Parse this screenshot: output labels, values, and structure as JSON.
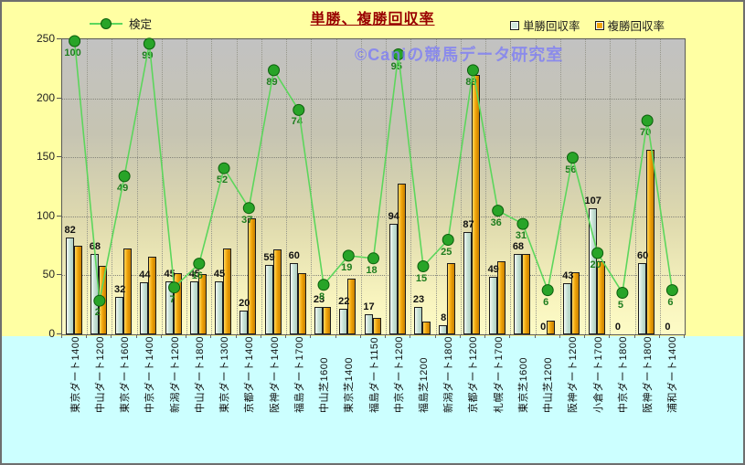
{
  "title": "単勝、複勝回収率",
  "watermark": "©Caniの競馬データ研究室",
  "legend": {
    "kentei": "検定",
    "tansho": "単勝回収率",
    "fukusho": "複勝回収率"
  },
  "colors": {
    "title": "#990000",
    "watermark": "#7D7DF5",
    "outer_bg": "#FFFFA3",
    "bottom_bg": "#CCFFFF",
    "plot_gradient_top": "#C2C2C2",
    "plot_gradient_bottom": "#FDFBC6",
    "tansho_bar": "#CBE4D9",
    "fukusho_bar": "#F2A60A",
    "kentei_line": "#5CD65C",
    "kentei_dot": "#28A428",
    "kentei_label": "#1E7D1E"
  },
  "chart_data": {
    "type": "bar",
    "subtype": "combo bar+line",
    "title": "単勝、複勝回収率",
    "y_axis": {
      "min": 0,
      "max": 250,
      "ticks": [
        0,
        50,
        100,
        150,
        200,
        250
      ],
      "gridlines": [
        50,
        100,
        150,
        200
      ]
    },
    "legend_position": "top",
    "grid": "on",
    "categories": [
      "東京ダート1400",
      "中山ダート1200",
      "東京ダート1600",
      "中京ダート1400",
      "新潟ダート1200",
      "中山ダート1800",
      "東京ダート1300",
      "京都ダート1400",
      "阪神ダート1400",
      "福島ダート1700",
      "中山芝1600",
      "東京芝1400",
      "福島ダート1150",
      "中京ダート1200",
      "福島芝1200",
      "新潟ダート1800",
      "京都ダート1200",
      "札幌ダート1700",
      "東京芝1600",
      "中山芝1200",
      "阪神ダート1200",
      "小倉ダート1700",
      "中京ダート1800",
      "阪神ダート1800",
      "浦和ダート1400"
    ],
    "series": [
      {
        "name": "単勝回収率",
        "type": "bar",
        "data_labels": true,
        "values": [
          82,
          68,
          32,
          44,
          45,
          45,
          45,
          20,
          59,
          60,
          23,
          22,
          17,
          94,
          23,
          8,
          87,
          49,
          68,
          0,
          43,
          107,
          0,
          60,
          0
        ]
      },
      {
        "name": "複勝回収率",
        "type": "bar",
        "data_labels": false,
        "values": [
          75,
          58,
          73,
          66,
          52,
          51,
          73,
          98,
          72,
          52,
          23,
          47,
          14,
          128,
          11,
          60,
          220,
          62,
          68,
          12,
          53,
          62,
          0,
          156,
          0
        ]
      },
      {
        "name": "検定",
        "type": "line",
        "data_labels": true,
        "axis": "hidden-secondary",
        "values": [
          100,
          2,
          49,
          99,
          7,
          16,
          52,
          37,
          89,
          74,
          8,
          19,
          18,
          95,
          15,
          25,
          89,
          36,
          31,
          6,
          56,
          20,
          5,
          70,
          6
        ]
      }
    ]
  }
}
